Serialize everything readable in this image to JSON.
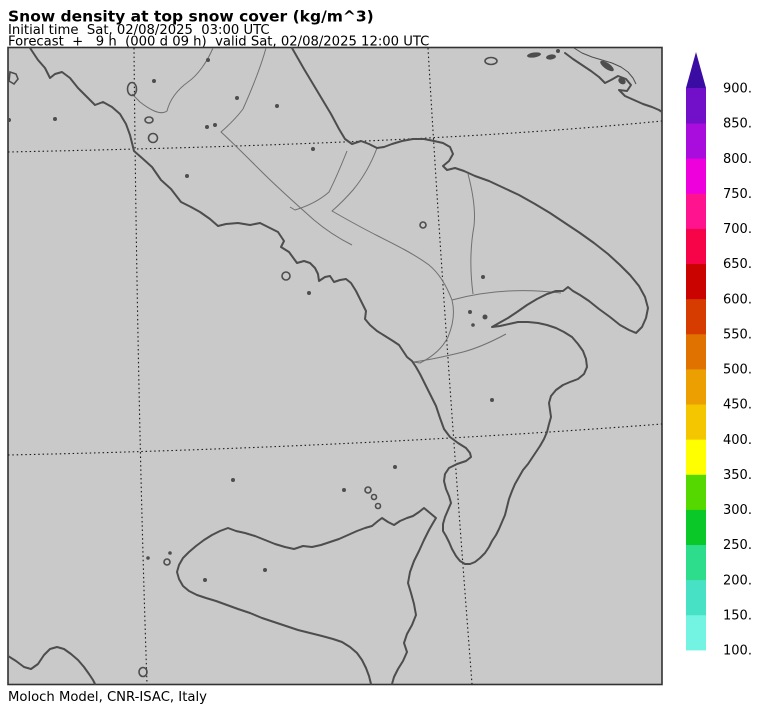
{
  "header": {
    "title": "Snow density at top snow cover (kg/m^3)",
    "initial_time_line": "Initial time  Sat, 02/08/2025  03:00 UTC",
    "forecast_line": "Forecast  +   9 h  (000 d 09 h)  valid Sat, 02/08/2025 12:00 UTC"
  },
  "footer": {
    "credit": "Moloch Model, CNR-ISAC, Italy"
  },
  "map": {
    "region": "Southern Italy",
    "gridlines": {
      "style": "dashed",
      "latitude_lines": 2,
      "longitude_lines": 2
    },
    "colors": {
      "background": "#c9c9c9",
      "frame": "#333333",
      "coastline": "#4d4d4d",
      "region_border": "#707070",
      "gridline": "#1a1a1a"
    }
  },
  "colorbar": {
    "unit": "kg/m^3",
    "orientation": "vertical",
    "above_max_color": "#3A0CA3",
    "tick_labels": [
      "100.",
      "150.",
      "200.",
      "250.",
      "300.",
      "350.",
      "400.",
      "450.",
      "500.",
      "550.",
      "600.",
      "650.",
      "700.",
      "750.",
      "800.",
      "850.",
      "900."
    ],
    "segments": [
      {
        "from": 100,
        "to": 150,
        "color": "#73F4E2"
      },
      {
        "from": 150,
        "to": 200,
        "color": "#47E2C5"
      },
      {
        "from": 200,
        "to": 250,
        "color": "#2EDD8C"
      },
      {
        "from": 250,
        "to": 300,
        "color": "#0AC828"
      },
      {
        "from": 300,
        "to": 350,
        "color": "#55D800"
      },
      {
        "from": 350,
        "to": 400,
        "color": "#FFFF00"
      },
      {
        "from": 400,
        "to": 450,
        "color": "#F4C600"
      },
      {
        "from": 450,
        "to": 500,
        "color": "#EB9F00"
      },
      {
        "from": 500,
        "to": 550,
        "color": "#E07200"
      },
      {
        "from": 550,
        "to": 600,
        "color": "#D63C00"
      },
      {
        "from": 600,
        "to": 650,
        "color": "#CA0300"
      },
      {
        "from": 650,
        "to": 700,
        "color": "#F70348"
      },
      {
        "from": 700,
        "to": 750,
        "color": "#FF138F"
      },
      {
        "from": 750,
        "to": 800,
        "color": "#EE00DC"
      },
      {
        "from": 800,
        "to": 850,
        "color": "#A90DDE"
      },
      {
        "from": 850,
        "to": 900,
        "color": "#7110C8"
      }
    ]
  }
}
